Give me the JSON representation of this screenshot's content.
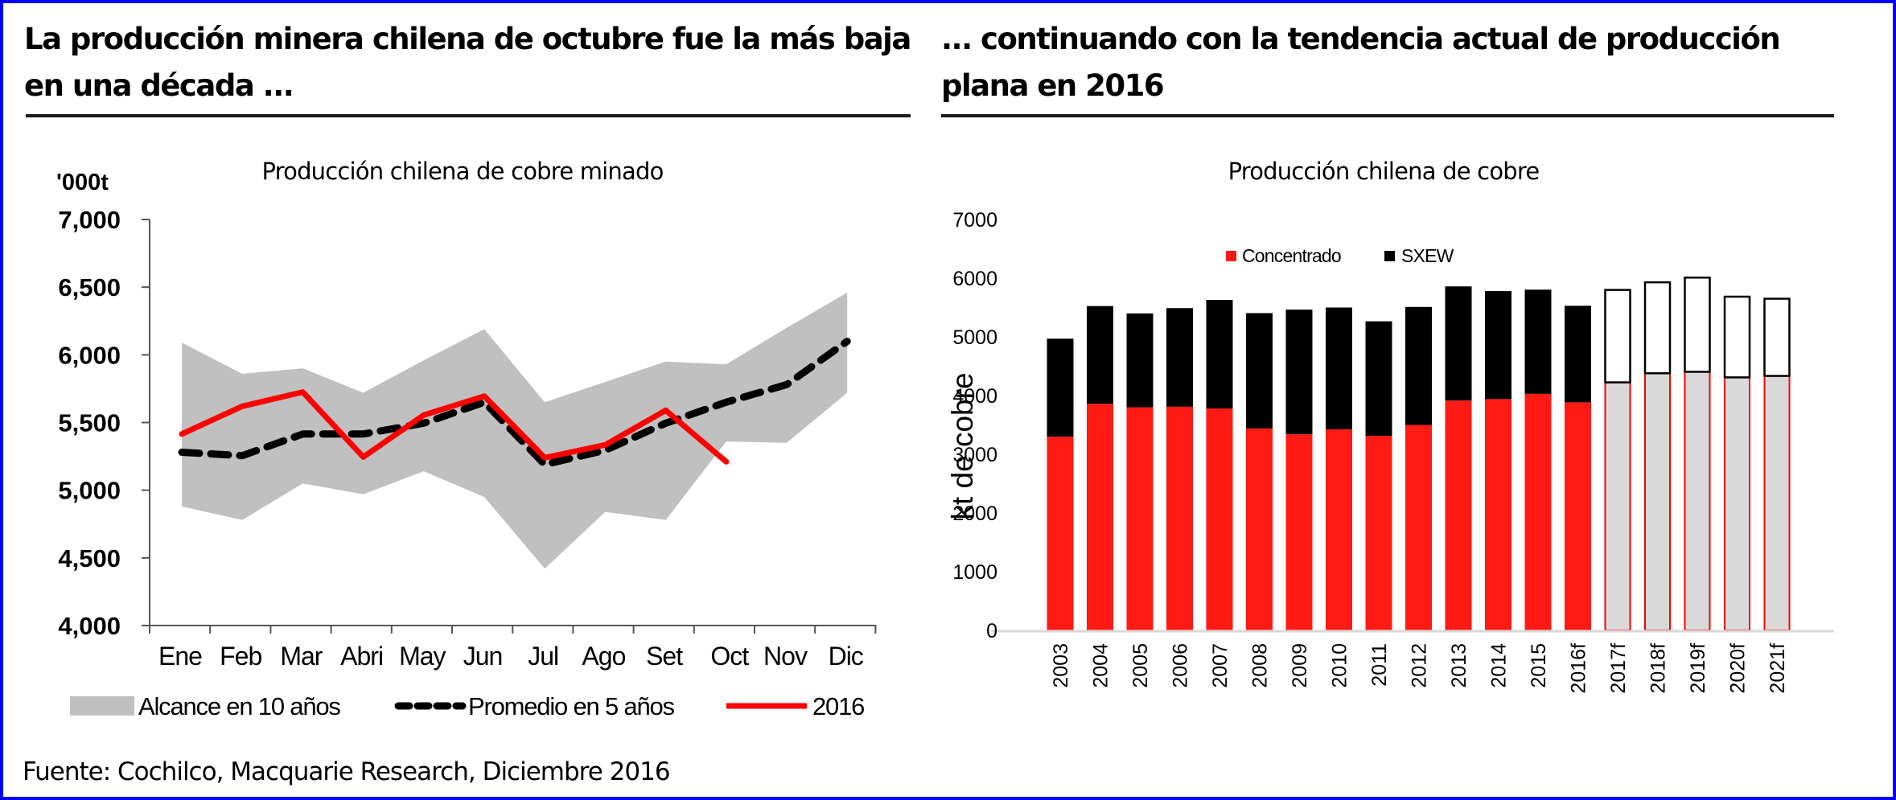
{
  "left_panel": {
    "headline_line1": "La producción minera chilena de octubre fue la más baja",
    "headline_line2": "en una década ...",
    "chart_title": "Producción chilena de cobre minado"
  },
  "right_panel": {
    "headline_line1": "... continuando con la tendencia actual de producción",
    "headline_line2": "plana en 2016",
    "chart_title": "Producción chilena de cobre"
  },
  "source": "Fuente: Cochilco, Macquarie Research, Diciembre 2016",
  "colors": {
    "frame": "#0000ff",
    "red_2016": "#ff0000",
    "range_gray": "#c0c0c0",
    "concentrado": "#ff1a14",
    "sxew": "#000000",
    "forecast_fill": "#d9d9d9"
  },
  "chart_data": [
    {
      "type": "line",
      "title": "Producción chilena de cobre minado",
      "ylabel": "'000t",
      "xlabel": "",
      "categories": [
        "Ene",
        "Feb",
        "Mar",
        "Abri",
        "May",
        "Jun",
        "Jul",
        "Ago",
        "Set",
        "Oct",
        "Nov",
        "Dic"
      ],
      "ylim": [
        4000,
        7000
      ],
      "yticks": [
        4000,
        4500,
        5000,
        5500,
        6000,
        6500,
        7000
      ],
      "ytick_labels": [
        "4,000",
        "4,500",
        "5,000",
        "5,500",
        "6,000",
        "6,500",
        "7,000"
      ],
      "grid": false,
      "legend_position": "bottom",
      "range_band": {
        "name": "Alcance en 10 años",
        "upper": [
          6090,
          5860,
          5900,
          5720,
          5960,
          6190,
          5650,
          5800,
          5950,
          5930,
          6200,
          6460
        ],
        "lower": [
          4880,
          4780,
          5050,
          4970,
          5140,
          4950,
          4420,
          4840,
          4780,
          5360,
          5350,
          5720
        ]
      },
      "series": [
        {
          "name": "Promedio en 5 años",
          "style": "dashed",
          "values": [
            5280,
            5255,
            5415,
            5415,
            5495,
            5650,
            5190,
            5295,
            5495,
            5650,
            5780,
            6100
          ]
        },
        {
          "name": "2016",
          "style": "solid",
          "values": [
            5415,
            5620,
            5725,
            5245,
            5555,
            5695,
            5240,
            5335,
            5590,
            5210,
            null,
            null
          ]
        }
      ],
      "legend": [
        "Alcance en 10 años",
        "Promedio en 5 años",
        "2016"
      ]
    },
    {
      "type": "bar",
      "stacked": true,
      "title": "Producción chilena de cobre",
      "ylabel": "kt de cobre",
      "xlabel": "",
      "categories": [
        "2003",
        "2004",
        "2005",
        "2006",
        "2007",
        "2008",
        "2009",
        "2010",
        "2011",
        "2012",
        "2013",
        "2014",
        "2015",
        "2016f",
        "2017f",
        "2018f",
        "2019f",
        "2020f",
        "2021f"
      ],
      "forecast_from": "2017f",
      "ylim": [
        0,
        7000
      ],
      "yticks": [
        0,
        1000,
        2000,
        3000,
        4000,
        5000,
        6000,
        7000
      ],
      "grid": false,
      "legend_position": "top-center",
      "series": [
        {
          "name": "Concentrado",
          "values": [
            3300,
            3860,
            3800,
            3810,
            3780,
            3440,
            3340,
            3425,
            3315,
            3500,
            3915,
            3940,
            4030,
            3885,
            4225,
            4380,
            4405,
            4310,
            4335
          ]
        },
        {
          "name": "SXEW",
          "values": [
            1670,
            1665,
            1600,
            1680,
            1850,
            1965,
            2125,
            2075,
            1950,
            2010,
            1945,
            1840,
            1775,
            1645,
            1575,
            1550,
            1605,
            1375,
            1315
          ]
        }
      ],
      "totals": [
        4970,
        5525,
        5400,
        5490,
        5630,
        5405,
        5465,
        5500,
        5265,
        5510,
        5860,
        5780,
        5805,
        5530,
        5800,
        5930,
        6010,
        5685,
        5650
      ],
      "legend": [
        "Concentrado",
        "SXEW"
      ]
    }
  ]
}
